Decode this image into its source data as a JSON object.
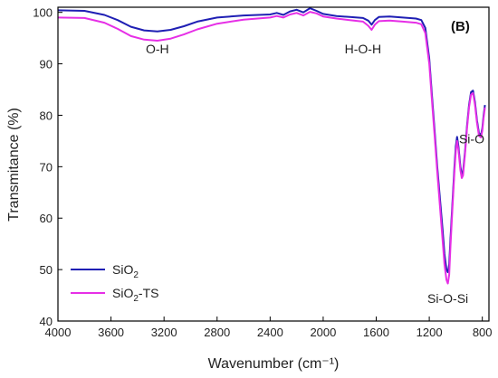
{
  "chart_data": {
    "type": "line",
    "panel_label": "(B)",
    "xlabel": "Wavenumber (cm⁻¹)",
    "ylabel": "Transmitance (%)",
    "xlim": [
      4000,
      750
    ],
    "ylim": [
      40,
      101
    ],
    "x_reversed": true,
    "grid": false,
    "legend_position": "bottom-left",
    "xticks": [
      4000,
      3600,
      3200,
      2800,
      2400,
      2000,
      1600,
      1200,
      800
    ],
    "yticks": [
      40,
      50,
      60,
      70,
      80,
      90,
      100
    ],
    "series": [
      {
        "name_main": "SiO",
        "name_sub": "2",
        "name_suffix": "",
        "color": "#1f1fb4",
        "points": [
          [
            4000,
            100.4
          ],
          [
            3800,
            100.3
          ],
          [
            3650,
            99.5
          ],
          [
            3550,
            98.5
          ],
          [
            3450,
            97.2
          ],
          [
            3350,
            96.5
          ],
          [
            3250,
            96.3
          ],
          [
            3150,
            96.6
          ],
          [
            3050,
            97.3
          ],
          [
            2950,
            98.2
          ],
          [
            2800,
            99.0
          ],
          [
            2600,
            99.4
          ],
          [
            2400,
            99.6
          ],
          [
            2350,
            99.9
          ],
          [
            2300,
            99.5
          ],
          [
            2250,
            100.2
          ],
          [
            2200,
            100.5
          ],
          [
            2150,
            100.0
          ],
          [
            2100,
            100.8
          ],
          [
            2050,
            100.3
          ],
          [
            2000,
            99.7
          ],
          [
            1900,
            99.3
          ],
          [
            1800,
            99.1
          ],
          [
            1700,
            98.9
          ],
          [
            1660,
            98.4
          ],
          [
            1635,
            97.6
          ],
          [
            1610,
            98.5
          ],
          [
            1580,
            99.1
          ],
          [
            1500,
            99.2
          ],
          [
            1400,
            99.0
          ],
          [
            1300,
            98.8
          ],
          [
            1260,
            98.5
          ],
          [
            1230,
            97.0
          ],
          [
            1200,
            91.0
          ],
          [
            1180,
            84.0
          ],
          [
            1160,
            77.0
          ],
          [
            1140,
            70.0
          ],
          [
            1120,
            64.0
          ],
          [
            1100,
            58.0
          ],
          [
            1085,
            53.0
          ],
          [
            1070,
            50.0
          ],
          [
            1060,
            49.5
          ],
          [
            1050,
            51.0
          ],
          [
            1040,
            56.0
          ],
          [
            1025,
            63.0
          ],
          [
            1010,
            70.0
          ],
          [
            1000,
            74.0
          ],
          [
            990,
            75.8
          ],
          [
            980,
            74.0
          ],
          [
            965,
            70.0
          ],
          [
            955,
            68.5
          ],
          [
            945,
            69.0
          ],
          [
            930,
            73.0
          ],
          [
            915,
            78.0
          ],
          [
            900,
            82.0
          ],
          [
            885,
            84.5
          ],
          [
            870,
            84.8
          ],
          [
            855,
            82.5
          ],
          [
            840,
            79.0
          ],
          [
            825,
            76.5
          ],
          [
            810,
            76.2
          ],
          [
            800,
            77.5
          ],
          [
            790,
            80.0
          ],
          [
            780,
            82.0
          ]
        ]
      },
      {
        "name_main": "SiO",
        "name_sub": "2",
        "name_suffix": "-TS",
        "color": "#e62fe6",
        "points": [
          [
            4000,
            99.0
          ],
          [
            3800,
            98.9
          ],
          [
            3650,
            98.0
          ],
          [
            3550,
            96.8
          ],
          [
            3450,
            95.4
          ],
          [
            3350,
            94.7
          ],
          [
            3250,
            94.5
          ],
          [
            3150,
            94.9
          ],
          [
            3050,
            95.7
          ],
          [
            2950,
            96.7
          ],
          [
            2800,
            97.8
          ],
          [
            2600,
            98.6
          ],
          [
            2400,
            99.0
          ],
          [
            2350,
            99.3
          ],
          [
            2300,
            99.0
          ],
          [
            2250,
            99.6
          ],
          [
            2200,
            99.9
          ],
          [
            2150,
            99.4
          ],
          [
            2100,
            100.1
          ],
          [
            2050,
            99.8
          ],
          [
            2000,
            99.2
          ],
          [
            1900,
            98.8
          ],
          [
            1800,
            98.5
          ],
          [
            1700,
            98.2
          ],
          [
            1660,
            97.4
          ],
          [
            1635,
            96.6
          ],
          [
            1610,
            97.6
          ],
          [
            1580,
            98.3
          ],
          [
            1500,
            98.4
          ],
          [
            1400,
            98.2
          ],
          [
            1300,
            98.0
          ],
          [
            1260,
            97.7
          ],
          [
            1230,
            96.0
          ],
          [
            1200,
            90.0
          ],
          [
            1180,
            83.0
          ],
          [
            1160,
            76.0
          ],
          [
            1140,
            69.0
          ],
          [
            1120,
            62.5
          ],
          [
            1100,
            56.0
          ],
          [
            1085,
            51.0
          ],
          [
            1070,
            48.0
          ],
          [
            1060,
            47.3
          ],
          [
            1050,
            49.0
          ],
          [
            1040,
            54.5
          ],
          [
            1025,
            62.0
          ],
          [
            1010,
            69.0
          ],
          [
            1000,
            73.0
          ],
          [
            990,
            75.0
          ],
          [
            980,
            73.3
          ],
          [
            965,
            69.3
          ],
          [
            955,
            67.8
          ],
          [
            945,
            68.3
          ],
          [
            930,
            72.5
          ],
          [
            915,
            77.5
          ],
          [
            900,
            81.5
          ],
          [
            885,
            84.0
          ],
          [
            870,
            84.3
          ],
          [
            855,
            82.0
          ],
          [
            840,
            78.5
          ],
          [
            825,
            76.0
          ],
          [
            810,
            75.7
          ],
          [
            800,
            77.0
          ],
          [
            790,
            79.5
          ],
          [
            780,
            81.5
          ]
        ]
      }
    ],
    "annotations": [
      {
        "text": "O-H",
        "x": 3250,
        "y": 92.0
      },
      {
        "text": "H-O-H",
        "x": 1700,
        "y": 92.0
      },
      {
        "text": "Si-O",
        "x": 880,
        "y": 74.5
      },
      {
        "text": "Si-O-Si",
        "x": 1060,
        "y": 43.5
      }
    ]
  }
}
